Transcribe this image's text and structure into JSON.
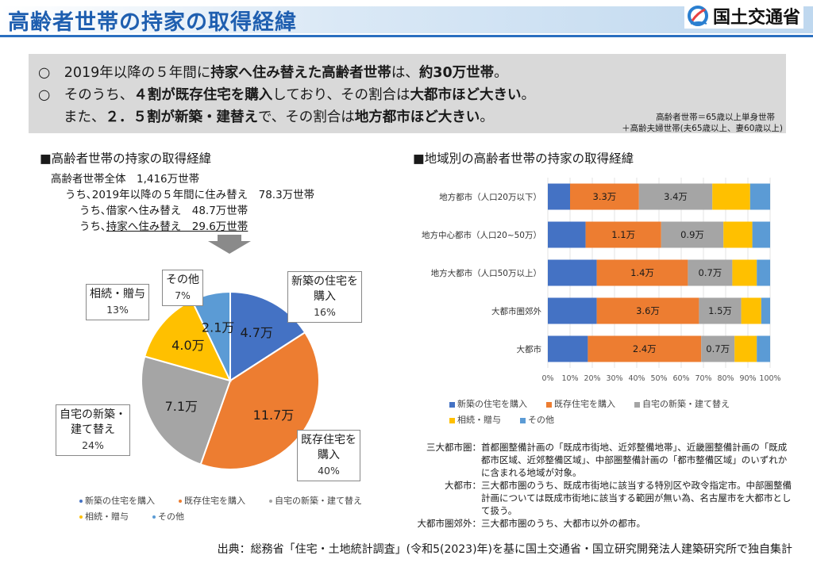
{
  "header": {
    "title": "高齢者世帯の持家の取得経緯",
    "ministry": "国土交通省",
    "logo_icon": "mlit-logo-icon"
  },
  "summary": {
    "line1": {
      "a": "○　2019年以降の５年間に",
      "b": "持家へ住み替えた高齢者世帯",
      "c": "は、",
      "d": "約30万世帯",
      "e": "。"
    },
    "line2": {
      "a": "○　そのうち、",
      "b": "４割が既存住宅を購入",
      "c": "しており、その割合は",
      "d": "大都市ほど大きい",
      "e": "。"
    },
    "line3": {
      "a": "また、",
      "b": "２．５割が新築・建替え",
      "c": "で、その割合は",
      "d": "地方都市ほど大きい",
      "e": "。"
    },
    "note1": "高齢者世帯＝65歳以上単身世帯",
    "note2": "＋高齢夫婦世帯(夫65歳以上、妻60歳以上)"
  },
  "pie_section": {
    "title": "■高齢者世帯の持家の取得経緯",
    "info": [
      "高齢者世帯全体　1,416万世帯",
      "うち､2019年以降の５年間に住み替え　78.3万世帯",
      "うち､借家へ住み替え　48.7万世帯",
      "うち､",
      "持家へ住み替え　29.6万世帯"
    ]
  },
  "bar_section": {
    "title": "■地域別の高齢者世帯の持家の取得経緯"
  },
  "colors": {
    "new": "#4472c4",
    "existing": "#ed7d31",
    "rebuild": "#a5a5a5",
    "inherit": "#ffc000",
    "other": "#5b9bd5"
  },
  "chart_data": [
    {
      "type": "pie",
      "slices": [
        {
          "label": "新築の住宅を購入",
          "label_lines": [
            "新築の住宅を",
            "購入"
          ],
          "value": 4.7,
          "value_label": "4.7万",
          "percent": "16%"
        },
        {
          "label": "既存住宅を購入",
          "label_lines": [
            "既存住宅を",
            "購入"
          ],
          "value": 11.7,
          "value_label": "11.7万",
          "percent": "40%"
        },
        {
          "label": "自宅の新築・建て替え",
          "label_lines": [
            "自宅の新築・",
            "建て替え"
          ],
          "value": 7.1,
          "value_label": "7.1万",
          "percent": "24%"
        },
        {
          "label": "相続・贈与",
          "label_lines": [
            "相続・贈与"
          ],
          "value": 4.0,
          "value_label": "4.0万",
          "percent": "13%"
        },
        {
          "label": "その他",
          "label_lines": [
            "その他"
          ],
          "value": 2.1,
          "value_label": "2.1万",
          "percent": "7%"
        }
      ],
      "legend": [
        "新築の住宅を購入",
        "既存住宅を購入",
        "自宅の新築・建て替え",
        "相続・贈与",
        "その他"
      ]
    },
    {
      "type": "bar",
      "orientation": "horizontal",
      "stacked": "percent",
      "categories": [
        "地方都市（人口20万以下）",
        "地方中心都市（人口20~50万）",
        "地方大都市（人口50万以上）",
        "大都市圏郊外",
        "大都市"
      ],
      "series": [
        {
          "name": "新築の住宅を購入",
          "values": [
            10,
            17,
            22,
            22,
            18
          ],
          "labels": [
            "",
            "",
            "",
            "",
            ""
          ]
        },
        {
          "name": "既存住宅を購入",
          "values": [
            31,
            34,
            41,
            46,
            51
          ],
          "labels": [
            "3.3万",
            "1.1万",
            "1.4万",
            "3.6万",
            "2.4万"
          ]
        },
        {
          "name": "自宅の新築・建て替え",
          "values": [
            33,
            28,
            20,
            19,
            15
          ],
          "labels": [
            "3.4万",
            "0.9万",
            "0.7万",
            "1.5万",
            "0.7万"
          ]
        },
        {
          "name": "相続・贈与",
          "values": [
            17,
            13,
            11,
            9,
            10
          ],
          "labels": [
            "",
            "",
            "",
            "",
            ""
          ]
        },
        {
          "name": "その他",
          "values": [
            9,
            8,
            6,
            4,
            6
          ],
          "labels": [
            "",
            "",
            "",
            "",
            ""
          ]
        }
      ],
      "xticks": [
        "0%",
        "10%",
        "20%",
        "30%",
        "40%",
        "50%",
        "60%",
        "70%",
        "80%",
        "90%",
        "100%"
      ],
      "xlim": [
        0,
        100
      ],
      "legend": [
        "新築の住宅を購入",
        "既存住宅を購入",
        "自宅の新築・建て替え",
        "相続・贈与",
        "その他"
      ]
    }
  ],
  "definitions": [
    {
      "term": "三大都市圏：",
      "text": "首都圏整備計画の「既成市街地、近郊整備地帯」、近畿圏整備計画の「既成都市区域、近郊整備区域」、中部圏整備計画の「都市整備区域」のいずれかに含まれる地域が対象。"
    },
    {
      "term": "大都市：",
      "text": "三大都市圏のうち、既成市街地に該当する特別区や政令指定市。中部圏整備計画については既成市街地に該当する範囲が無い為、名古屋市を大都市として扱う。"
    },
    {
      "term": "大都市圏郊外：",
      "text": "三大都市圏のうち、大都市以外の都市。"
    }
  ],
  "source": "出典：総務省「住宅・土地統計調査」(令和5(2023)年)を基に国土交通省・国立研究開発法人建築研究所で独自集計"
}
